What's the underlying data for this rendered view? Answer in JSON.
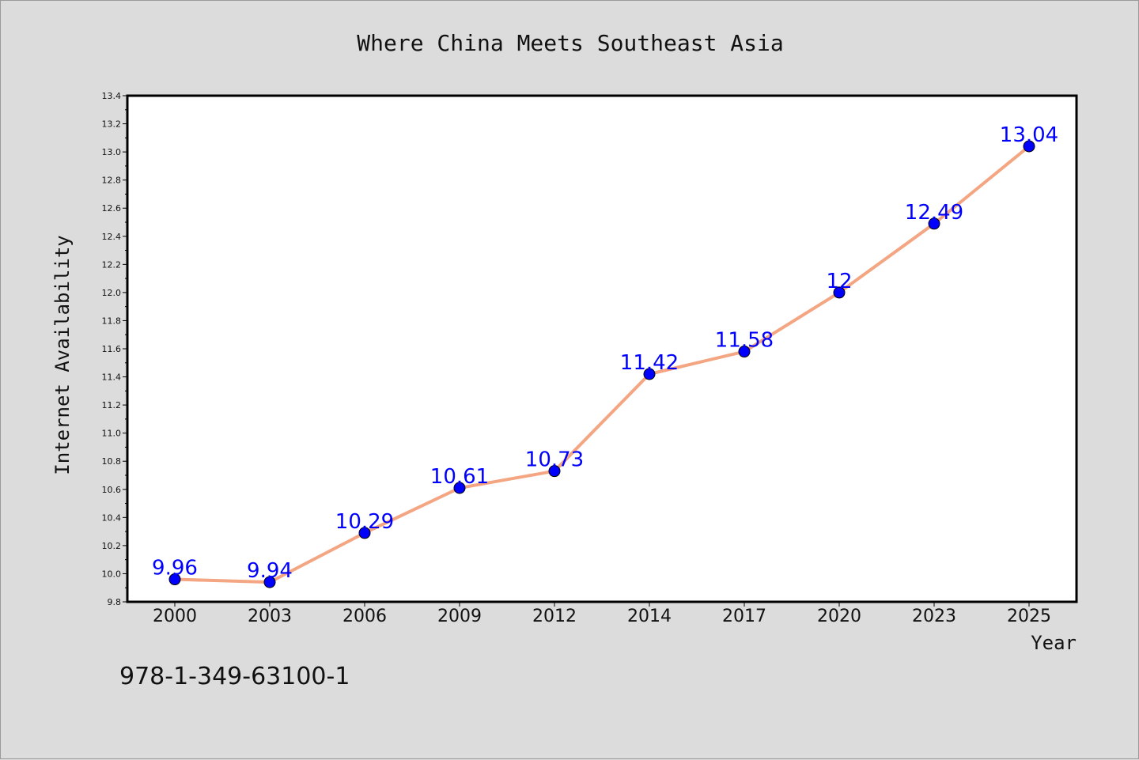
{
  "page": {
    "title": "Where China Meets Southeast Asia",
    "footer": "978-1-349-63100-1"
  },
  "colors": {
    "background": "#dcdcdc",
    "plot_background": "#ffffff",
    "line": "#f4a582",
    "marker": "#0000ff",
    "data_label": "#0000ff"
  },
  "chart_data": {
    "type": "line",
    "title": "Where China Meets Southeast Asia",
    "xlabel": "Year",
    "ylabel": "Internet Availability",
    "categories": [
      "2000",
      "2003",
      "2006",
      "2009",
      "2012",
      "2014",
      "2017",
      "2020",
      "2023",
      "2025"
    ],
    "series": [
      {
        "values": [
          9.96,
          9.94,
          10.29,
          10.61,
          10.73,
          11.42,
          11.58,
          12,
          12.49,
          13.04
        ],
        "labels": [
          "9.96",
          "9.94",
          "10.29",
          "10.61",
          "10.73",
          "11.42",
          "11.58",
          "12",
          "12.49",
          "13.04"
        ]
      }
    ],
    "ylim": [
      9.8,
      13.4
    ],
    "yticks": [
      "9.8",
      "10.0",
      "10.2",
      "10.4",
      "10.6",
      "10.8",
      "11.0",
      "11.2",
      "11.4",
      "11.6",
      "11.8",
      "12.0",
      "12.2",
      "12.4",
      "12.6",
      "12.8",
      "13.0",
      "13.2",
      "13.4"
    ],
    "grid": false,
    "legend": "none"
  }
}
